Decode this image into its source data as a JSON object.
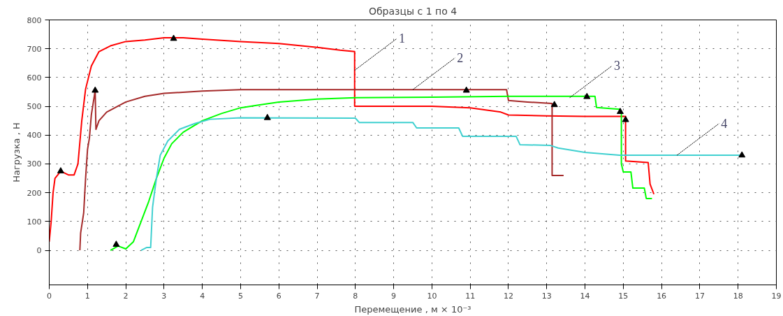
{
  "chart_data": {
    "type": "line",
    "title": "Образцы с 1 по 4",
    "xlabel": "Перемещение , м × 10⁻³",
    "ylabel": "Нагрузка , Н",
    "xlim": [
      0,
      19
    ],
    "ylim": [
      -120,
      800
    ],
    "xticks": [
      0,
      1,
      2,
      3,
      4,
      5,
      6,
      7,
      8,
      9,
      10,
      11,
      12,
      13,
      14,
      15,
      16,
      17,
      18,
      19
    ],
    "yticks": [
      0,
      100,
      200,
      300,
      400,
      500,
      600,
      700,
      800
    ],
    "grid": true,
    "line_style": "solid",
    "marker": "none",
    "series": [
      {
        "color": "#ff0000",
        "x": [
          0,
          0.05,
          0.1,
          0.15,
          0.3,
          0.5,
          0.65,
          0.75,
          0.85,
          0.95,
          1.1,
          1.3,
          1.6,
          2,
          2.5,
          3,
          3.5,
          4,
          5,
          6,
          7,
          7.6,
          7.98,
          7.98,
          9,
          10,
          11,
          11.8,
          12,
          13,
          14,
          15.06,
          15.06,
          15.65,
          15.7,
          15.8
        ],
        "values": [
          30,
          100,
          200,
          250,
          275,
          262,
          262,
          300,
          450,
          560,
          640,
          690,
          710,
          725,
          730,
          738,
          738,
          733,
          725,
          718,
          705,
          695,
          690,
          500,
          500,
          500,
          495,
          480,
          470,
          467,
          465,
          465,
          310,
          305,
          230,
          195
        ]
      },
      {
        "color": "#a52a2a",
        "x": [
          0.8,
          0.82,
          0.9,
          0.95,
          1.0,
          1.05,
          1.1,
          1.2,
          1.22,
          1.3,
          1.5,
          2,
          2.5,
          3,
          4,
          5,
          8,
          11.95,
          12,
          12.5,
          13.14,
          13.14,
          13.44
        ],
        "values": [
          0,
          60,
          130,
          250,
          350,
          390,
          470,
          555,
          420,
          450,
          480,
          515,
          535,
          545,
          553,
          558,
          558,
          558,
          520,
          515,
          510,
          260,
          260
        ]
      },
      {
        "color": "#00ff00",
        "x": [
          1.6,
          1.8,
          2.0,
          2.2,
          2.4,
          2.6,
          2.8,
          3.0,
          3.2,
          3.5,
          4,
          4.5,
          5,
          5.5,
          6,
          7,
          8,
          10,
          12,
          14.26,
          14.3,
          14.9,
          14.95,
          14.95,
          15.0,
          15.2,
          15.25,
          15.55,
          15.6,
          15.75
        ],
        "values": [
          0,
          15,
          5,
          30,
          100,
          170,
          250,
          320,
          370,
          410,
          450,
          475,
          495,
          505,
          515,
          525,
          530,
          532,
          535,
          535,
          496,
          490,
          475,
          300,
          272,
          272,
          216,
          216,
          180,
          180
        ]
      },
      {
        "color": "#40d0d0",
        "x": [
          2.4,
          2.55,
          2.65,
          2.7,
          2.8,
          2.9,
          3.1,
          3.4,
          3.8,
          4.2,
          5,
          8,
          8.1,
          9.5,
          9.6,
          10.7,
          10.8,
          12.2,
          12.3,
          13.1,
          13.3,
          14,
          14.9,
          16,
          18.1
        ],
        "values": [
          0,
          10,
          10,
          150,
          250,
          330,
          380,
          420,
          440,
          455,
          460,
          459,
          444,
          444,
          425,
          425,
          396,
          396,
          367,
          364,
          355,
          340,
          330,
          330,
          330
        ]
      },
      {
        "type": "scatter",
        "marker": "triangle",
        "color": "#000000",
        "x": [
          0.3,
          3.25,
          1.2,
          10.9,
          13.2,
          1.75,
          14.05,
          14.92,
          5.7,
          18.1,
          15.06
        ],
        "values": [
          275,
          735,
          555,
          555,
          505,
          20,
          533,
          481,
          460,
          330,
          453
        ]
      }
    ],
    "annotations": [
      {
        "text": "1",
        "x": 7.98,
        "y": 625
      },
      {
        "text": "2",
        "x": 9.5,
        "y": 558
      },
      {
        "text": "3",
        "x": 13.6,
        "y": 530
      },
      {
        "text": "4",
        "x": 16.4,
        "y": 330
      }
    ]
  }
}
